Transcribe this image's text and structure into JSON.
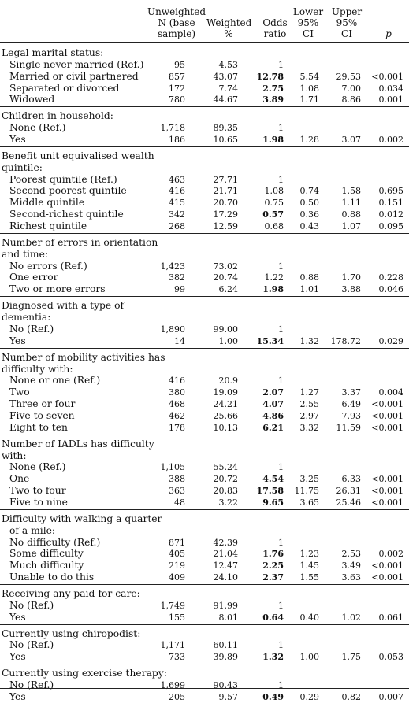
{
  "headers": {
    "n": "Unweighted N (base sample)",
    "weighted": "Weighted %",
    "or": "Odds ratio",
    "lower": "Lower 95% CI",
    "upper": "Upper 95% CI",
    "p": "p"
  },
  "sections": [
    {
      "title": "Legal marital status:",
      "rows": [
        {
          "label": "Single never married (Ref.)",
          "n": "95",
          "w": "4.53",
          "or": "1",
          "bold": false,
          "lo": "",
          "hi": "",
          "p": ""
        },
        {
          "label": "Married or civil partnered",
          "n": "857",
          "w": "43.07",
          "or": "12.78",
          "bold": true,
          "lo": "5.54",
          "hi": "29.53",
          "p": "<0.001"
        },
        {
          "label": "Separated or divorced",
          "n": "172",
          "w": "7.74",
          "or": "2.75",
          "bold": true,
          "lo": "1.08",
          "hi": "7.00",
          "p": "0.034"
        },
        {
          "label": "Widowed",
          "n": "780",
          "w": "44.67",
          "or": "3.89",
          "bold": true,
          "lo": "1.71",
          "hi": "8.86",
          "p": "0.001"
        }
      ]
    },
    {
      "title": "Children in household:",
      "rows": [
        {
          "label": "None (Ref.)",
          "n": "1,718",
          "w": "89.35",
          "or": "1",
          "bold": false,
          "lo": "",
          "hi": "",
          "p": ""
        },
        {
          "label": "Yes",
          "n": "186",
          "w": "10.65",
          "or": "1.98",
          "bold": true,
          "lo": "1.28",
          "hi": "3.07",
          "p": "0.002"
        }
      ]
    },
    {
      "title": "Benefit unit equivalised wealth|quintile:",
      "rows": [
        {
          "label": "Poorest quintile (Ref.)",
          "n": "463",
          "w": "27.71",
          "or": "1",
          "bold": false,
          "lo": "",
          "hi": "",
          "p": ""
        },
        {
          "label": "Second-poorest quintile",
          "n": "416",
          "w": "21.71",
          "or": "1.08",
          "bold": false,
          "lo": "0.74",
          "hi": "1.58",
          "p": "0.695"
        },
        {
          "label": "Middle quintile",
          "n": "415",
          "w": "20.70",
          "or": "0.75",
          "bold": false,
          "lo": "0.50",
          "hi": "1.11",
          "p": "0.151"
        },
        {
          "label": "Second-richest quintile",
          "n": "342",
          "w": "17.29",
          "or": "0.57",
          "bold": true,
          "lo": "0.36",
          "hi": "0.88",
          "p": "0.012"
        },
        {
          "label": "Richest quintile",
          "n": "268",
          "w": "12.59",
          "or": "0.68",
          "bold": false,
          "lo": "0.43",
          "hi": "1.07",
          "p": "0.095"
        }
      ]
    },
    {
      "title": "Number of errors in orientation|and time:",
      "rows": [
        {
          "label": "No errors (Ref.)",
          "n": "1,423",
          "w": "73.02",
          "or": "1",
          "bold": false,
          "lo": "",
          "hi": "",
          "p": ""
        },
        {
          "label": "One error",
          "n": "382",
          "w": "20.74",
          "or": "1.22",
          "bold": false,
          "lo": "0.88",
          "hi": "1.70",
          "p": "0.228"
        },
        {
          "label": "Two or more errors",
          "n": "99",
          "w": "6.24",
          "or": "1.98",
          "bold": true,
          "lo": "1.01",
          "hi": "3.88",
          "p": "0.046"
        }
      ]
    },
    {
      "title": "Diagnosed with a type of|dementia:",
      "rows": [
        {
          "label": "No (Ref.)",
          "n": "1,890",
          "w": "99.00",
          "or": "1",
          "bold": false,
          "lo": "",
          "hi": "",
          "p": ""
        },
        {
          "label": "Yes",
          "n": "14",
          "w": "1.00",
          "or": "15.34",
          "bold": true,
          "lo": "1.32",
          "hi": "178.72",
          "p": "0.029"
        }
      ]
    },
    {
      "title": "Number of mobility activities has|difficulty with:",
      "rows": [
        {
          "label": "None or one (Ref.)",
          "n": "416",
          "w": "20.9",
          "or": "1",
          "bold": false,
          "lo": "",
          "hi": "",
          "p": ""
        },
        {
          "label": "Two",
          "n": "380",
          "w": "19.09",
          "or": "2.07",
          "bold": true,
          "lo": "1.27",
          "hi": "3.37",
          "p": "0.004"
        },
        {
          "label": "Three or four",
          "n": "468",
          "w": "24.21",
          "or": "4.07",
          "bold": true,
          "lo": "2.55",
          "hi": "6.49",
          "p": "<0.001"
        },
        {
          "label": "Five to seven",
          "n": "462",
          "w": "25.66",
          "or": "4.86",
          "bold": true,
          "lo": "2.97",
          "hi": "7.93",
          "p": "<0.001"
        },
        {
          "label": "Eight to ten",
          "n": "178",
          "w": "10.13",
          "or": "6.21",
          "bold": true,
          "lo": "3.32",
          "hi": "11.59",
          "p": "<0.001"
        }
      ]
    },
    {
      "title": "Number of IADLs has difficulty|with:",
      "rows": [
        {
          "label": "None (Ref.)",
          "n": "1,105",
          "w": "55.24",
          "or": "1",
          "bold": false,
          "lo": "",
          "hi": "",
          "p": ""
        },
        {
          "label": "One",
          "n": "388",
          "w": "20.72",
          "or": "4.54",
          "bold": true,
          "lo": "3.25",
          "hi": "6.33",
          "p": "<0.001"
        },
        {
          "label": "Two to four",
          "n": "363",
          "w": "20.83",
          "or": "17.58",
          "bold": true,
          "lo": "11.75",
          "hi": "26.31",
          "p": "<0.001"
        },
        {
          "label": "Five to nine",
          "n": "48",
          "w": "3.22",
          "or": "9.65",
          "bold": true,
          "lo": "3.65",
          "hi": "25.46",
          "p": "<0.001"
        }
      ]
    },
    {
      "title": "Difficulty with walking a quarter|of a mile:",
      "titleIndent": true,
      "rows": [
        {
          "label": "No difficulty (Ref.)",
          "n": "871",
          "w": "42.39",
          "or": "1",
          "bold": false,
          "lo": "",
          "hi": "",
          "p": ""
        },
        {
          "label": "Some difficulty",
          "n": "405",
          "w": "21.04",
          "or": "1.76",
          "bold": true,
          "lo": "1.23",
          "hi": "2.53",
          "p": "0.002"
        },
        {
          "label": "Much difficulty",
          "n": "219",
          "w": "12.47",
          "or": "2.25",
          "bold": true,
          "lo": "1.45",
          "hi": "3.49",
          "p": "<0.001"
        },
        {
          "label": "Unable to do this",
          "n": "409",
          "w": "24.10",
          "or": "2.37",
          "bold": true,
          "lo": "1.55",
          "hi": "3.63",
          "p": "<0.001"
        }
      ]
    },
    {
      "title": "Receiving any paid-for care:",
      "rows": [
        {
          "label": "No (Ref.)",
          "n": "1,749",
          "w": "91.99",
          "or": "1",
          "bold": false,
          "lo": "",
          "hi": "",
          "p": ""
        },
        {
          "label": "Yes",
          "n": "155",
          "w": "8.01",
          "or": "0.64",
          "bold": true,
          "lo": "0.40",
          "hi": "1.02",
          "p": "0.061"
        }
      ]
    },
    {
      "title": "Currently using chiropodist:",
      "rows": [
        {
          "label": "No (Ref.)",
          "n": "1,171",
          "w": "60.11",
          "or": "1",
          "bold": false,
          "lo": "",
          "hi": "",
          "p": ""
        },
        {
          "label": "Yes",
          "n": "733",
          "w": "39.89",
          "or": "1.32",
          "bold": true,
          "lo": "1.00",
          "hi": "1.75",
          "p": "0.053"
        }
      ]
    },
    {
      "title": "Currently using exercise therapy:",
      "rows": [
        {
          "label": "No (Ref.)",
          "n": "1,699",
          "w": "90.43",
          "or": "1",
          "bold": false,
          "lo": "",
          "hi": "",
          "p": ""
        },
        {
          "label": "Yes",
          "n": "205",
          "w": "9.57",
          "or": "0.49",
          "bold": true,
          "lo": "0.29",
          "hi": "0.82",
          "p": "0.007"
        }
      ]
    }
  ]
}
